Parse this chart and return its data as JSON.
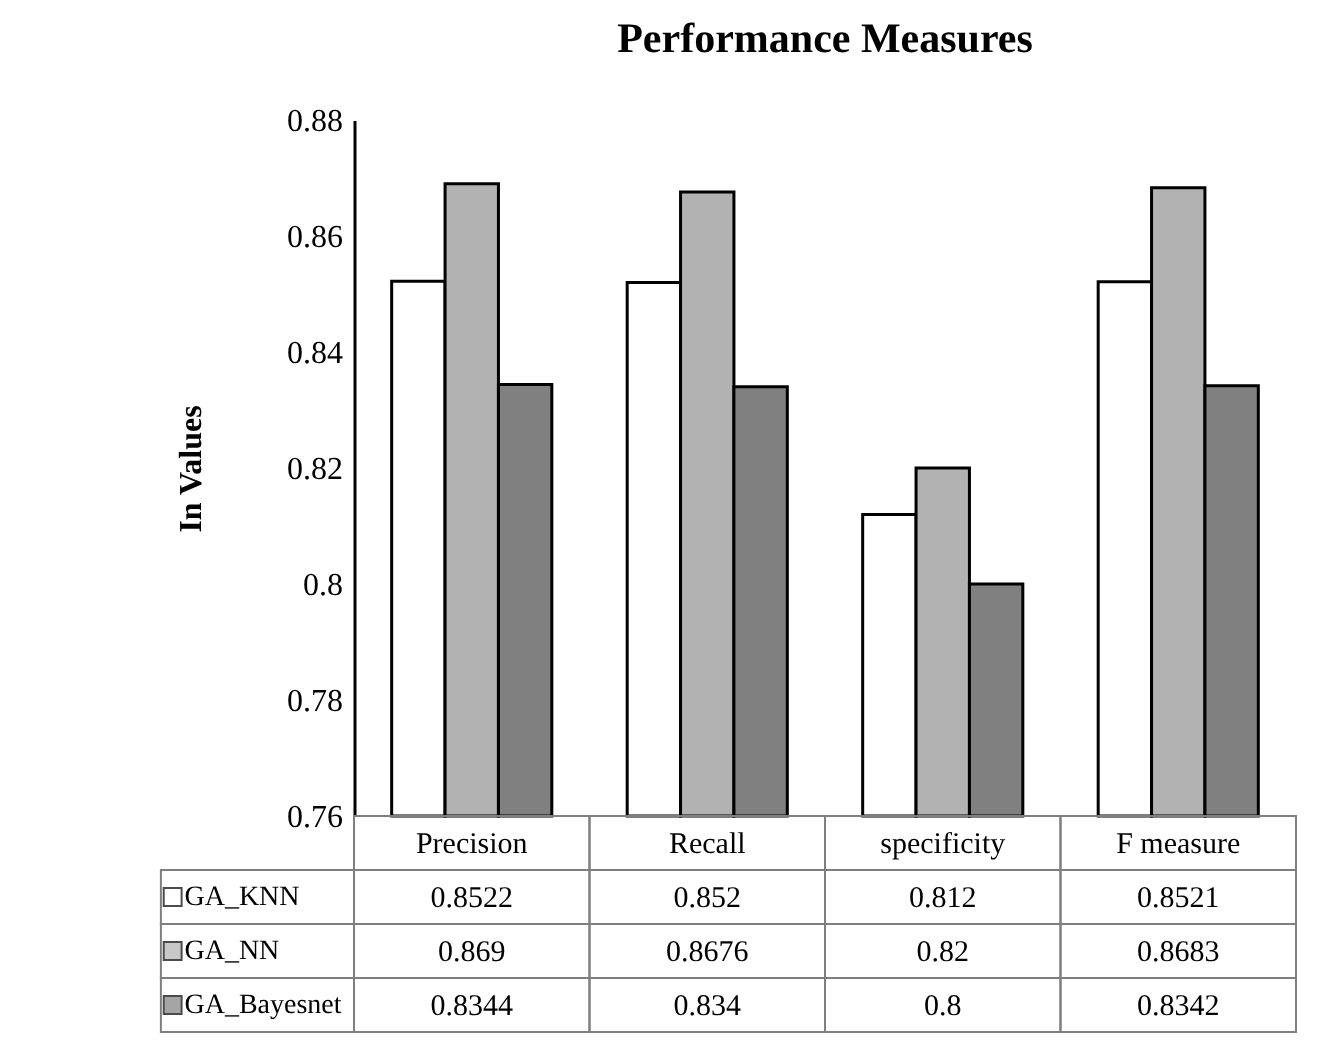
{
  "chart_data": {
    "type": "bar",
    "title": "Performance Measures",
    "ylabel": "In Values",
    "categories": [
      "Precision",
      "Recall",
      "specificity",
      "F measure"
    ],
    "series": [
      {
        "name": "GA_KNN",
        "color": "#ffffff",
        "values": [
          0.8522,
          0.852,
          0.812,
          0.8521
        ]
      },
      {
        "name": "GA_NN",
        "color": "#b2b2b2",
        "values": [
          0.869,
          0.8676,
          0.82,
          0.8683
        ]
      },
      {
        "name": "GA_Bayesnet",
        "color": "#808080",
        "values": [
          0.8344,
          0.834,
          0.8,
          0.8342
        ]
      }
    ],
    "ylim": [
      0.76,
      0.88
    ],
    "yticks": [
      0.76,
      0.78,
      0.8,
      0.82,
      0.84,
      0.86,
      0.88
    ],
    "data_labels": true,
    "legend": "bottom",
    "grid": false
  }
}
